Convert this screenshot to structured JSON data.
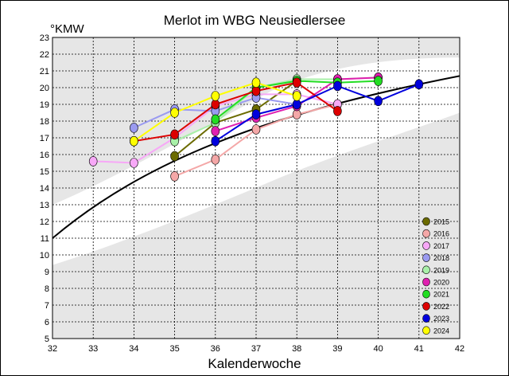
{
  "chart_data": {
    "type": "line",
    "title": "Merlot im WBG Neusiedlersee",
    "ylabel": "°KMW",
    "xlabel": "Kalenderwoche",
    "xlim": [
      32,
      42
    ],
    "ylim": [
      5,
      23
    ],
    "xticks": [
      32,
      33,
      34,
      35,
      36,
      37,
      38,
      39,
      40,
      41,
      42
    ],
    "yticks": [
      5,
      6,
      7,
      8,
      9,
      10,
      11,
      12,
      13,
      14,
      15,
      16,
      17,
      18,
      19,
      20,
      21,
      22,
      23
    ],
    "grid": true,
    "legend_position": "bottom-right",
    "band_color": "#e6e6e6",
    "trend_color": "#000000",
    "series": [
      {
        "name": "2015",
        "color": "#6b6b00",
        "points": [
          [
            35,
            15.9
          ],
          [
            36,
            17.9
          ],
          [
            37,
            18.7
          ],
          [
            38,
            20.4
          ]
        ]
      },
      {
        "name": "2016",
        "color": "#f4a7a7",
        "points": [
          [
            35,
            14.7
          ],
          [
            36,
            15.7
          ],
          [
            37,
            17.5
          ],
          [
            38,
            18.4
          ],
          [
            39,
            19.0
          ]
        ]
      },
      {
        "name": "2017",
        "color": "#f7a8f7",
        "points": [
          [
            33,
            15.6
          ],
          [
            34,
            15.5
          ],
          [
            35,
            17.0
          ],
          [
            36,
            18.9
          ],
          [
            37,
            19.6
          ],
          [
            38,
            19.6
          ],
          [
            39,
            19.0
          ]
        ]
      },
      {
        "name": "2018",
        "color": "#9a9af0",
        "points": [
          [
            34,
            17.6
          ],
          [
            35,
            18.7
          ],
          [
            36,
            18.6
          ],
          [
            37,
            19.4
          ],
          [
            38,
            19.0
          ]
        ]
      },
      {
        "name": "2019",
        "color": "#a8f0a8",
        "points": [
          [
            35,
            16.8
          ],
          [
            36,
            17.9
          ],
          [
            37,
            20.0
          ],
          [
            38,
            20.5
          ],
          [
            39,
            20.5
          ],
          [
            40,
            20.6
          ]
        ]
      },
      {
        "name": "2020",
        "color": "#e020b0",
        "points": [
          [
            36,
            17.4
          ],
          [
            37,
            18.2
          ],
          [
            38,
            18.9
          ],
          [
            39,
            20.5
          ],
          [
            40,
            20.6
          ]
        ]
      },
      {
        "name": "2021",
        "color": "#22dd22",
        "points": [
          [
            36,
            18.1
          ],
          [
            37,
            20.0
          ],
          [
            38,
            20.4
          ],
          [
            39,
            20.3
          ],
          [
            40,
            20.4
          ]
        ]
      },
      {
        "name": "2022",
        "color": "#dd0000",
        "points": [
          [
            34,
            16.8
          ],
          [
            35,
            17.2
          ],
          [
            36,
            19.0
          ],
          [
            37,
            19.8
          ],
          [
            38,
            20.3
          ],
          [
            39,
            18.6
          ]
        ]
      },
      {
        "name": "2023",
        "color": "#0000dd",
        "points": [
          [
            36,
            16.8
          ],
          [
            37,
            18.4
          ],
          [
            38,
            19.0
          ],
          [
            39,
            20.1
          ],
          [
            40,
            19.2
          ],
          [
            41,
            20.2
          ]
        ]
      },
      {
        "name": "2024",
        "color": "#ffff00",
        "points": [
          [
            34,
            16.8
          ],
          [
            35,
            18.5
          ],
          [
            36,
            19.5
          ],
          [
            37,
            20.3
          ],
          [
            38,
            19.5
          ]
        ]
      }
    ]
  }
}
